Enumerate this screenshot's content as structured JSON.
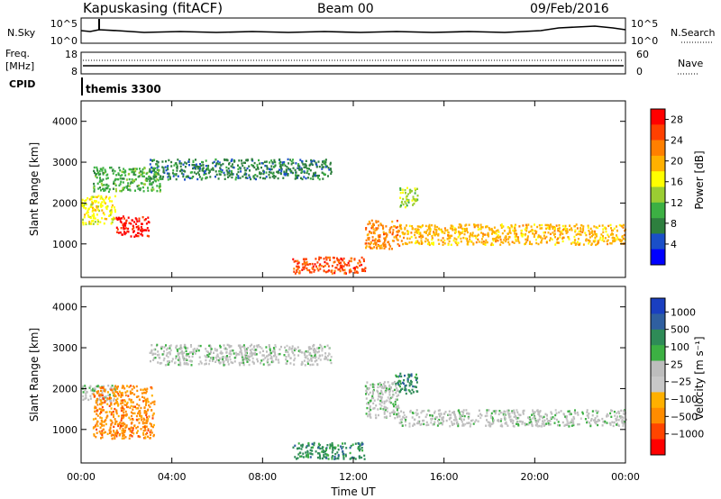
{
  "header": {
    "station": "Kapuskasing (fitACF)",
    "beam": "Beam 00",
    "date": "09/Feb/2016"
  },
  "panels": {
    "nsky": {
      "label": "N.Sky",
      "left_ticks": [
        "10^5",
        "10^0"
      ],
      "right_ticks": [
        "10^5",
        "10^0"
      ],
      "right_label": "N.Search"
    },
    "freq": {
      "label_line1": "Freq.",
      "label_line2": "[MHz]",
      "left_ticks": [
        "18",
        "8"
      ],
      "right_ticks": [
        "60",
        "0"
      ],
      "right_label": "Nave"
    },
    "cpid": {
      "label": "CPID",
      "text": "themis 3300"
    }
  },
  "colors": {
    "power": [
      "#0000ff",
      "#1a4fc8",
      "#2d7f3e",
      "#3cb043",
      "#9acd32",
      "#ffff00",
      "#ffb000",
      "#ff7f00",
      "#ff4000",
      "#ff0000"
    ],
    "velocity": [
      "#1a3fc0",
      "#2f5fa0",
      "#2e8b57",
      "#3cb043",
      "#bdbdbd",
      "#c8c8c8",
      "#ffb000",
      "#ff8c00",
      "#ff4500",
      "#ff0000"
    ],
    "frame": "#000000"
  },
  "chart_data": [
    {
      "type": "heatmap",
      "title": "Power",
      "xlabel": "",
      "ylabel": "Slant Range [km]",
      "x_ticks": [
        "00:00",
        "04:00",
        "08:00",
        "12:00",
        "16:00",
        "20:00",
        "00:00"
      ],
      "x_range_hours": [
        0,
        24
      ],
      "y_ticks": [
        "1000",
        "2000",
        "3000",
        "4000"
      ],
      "ylim_km": [
        180,
        4500
      ],
      "colorbar": {
        "label": "Power [dB]",
        "ticks": [
          "4",
          "8",
          "12",
          "16",
          "20",
          "24",
          "28"
        ],
        "range": [
          0,
          30
        ]
      },
      "regions": [
        {
          "t_start": 0.0,
          "t_end": 1.5,
          "r_low": 1500,
          "r_high": 2200,
          "value": 16
        },
        {
          "t_start": 1.5,
          "t_end": 3.0,
          "r_low": 1200,
          "r_high": 1700,
          "value": 28
        },
        {
          "t_start": 0.5,
          "t_end": 3.5,
          "r_low": 2300,
          "r_high": 2900,
          "value": 10
        },
        {
          "t_start": 3.0,
          "t_end": 11.0,
          "r_low": 2600,
          "r_high": 3100,
          "value": 8
        },
        {
          "t_start": 9.3,
          "t_end": 12.5,
          "r_low": 300,
          "r_high": 700,
          "value": 26
        },
        {
          "t_start": 12.5,
          "t_end": 14.0,
          "r_low": 900,
          "r_high": 1600,
          "value": 22
        },
        {
          "t_start": 14.0,
          "t_end": 24.0,
          "r_low": 1000,
          "r_high": 1500,
          "value": 18
        },
        {
          "t_start": 14.0,
          "t_end": 14.8,
          "r_low": 1900,
          "r_high": 2400,
          "value": 12
        }
      ]
    },
    {
      "type": "heatmap",
      "title": "Velocity",
      "xlabel": "Time UT",
      "ylabel": "Slant Range [km]",
      "x_ticks": [
        "00:00",
        "04:00",
        "08:00",
        "12:00",
        "16:00",
        "20:00",
        "00:00"
      ],
      "x_range_hours": [
        0,
        24
      ],
      "y_ticks": [
        "1000",
        "2000",
        "3000",
        "4000"
      ],
      "ylim_km": [
        180,
        4500
      ],
      "colorbar": {
        "label": "Velocity [m s⁻¹]",
        "ticks": [
          "1000",
          "500",
          "100",
          "25",
          "−25",
          "−100",
          "−500",
          "−1000"
        ]
      },
      "regions": [
        {
          "t_start": 0.0,
          "t_end": 1.5,
          "r_low": 1700,
          "r_high": 2100,
          "value": 0
        },
        {
          "t_start": 0.5,
          "t_end": 3.2,
          "r_low": 800,
          "r_high": 2100,
          "value": -200
        },
        {
          "t_start": 3.0,
          "t_end": 11.0,
          "r_low": 2600,
          "r_high": 3100,
          "value": 0
        },
        {
          "t_start": 9.3,
          "t_end": 12.5,
          "r_low": 300,
          "r_high": 700,
          "value": 200
        },
        {
          "t_start": 12.5,
          "t_end": 14.0,
          "r_low": 1300,
          "r_high": 2200,
          "value": 0
        },
        {
          "t_start": 13.8,
          "t_end": 14.8,
          "r_low": 1900,
          "r_high": 2400,
          "value": 150
        },
        {
          "t_start": 14.0,
          "t_end": 24.0,
          "r_low": 1100,
          "r_high": 1500,
          "value": 0
        }
      ]
    }
  ]
}
